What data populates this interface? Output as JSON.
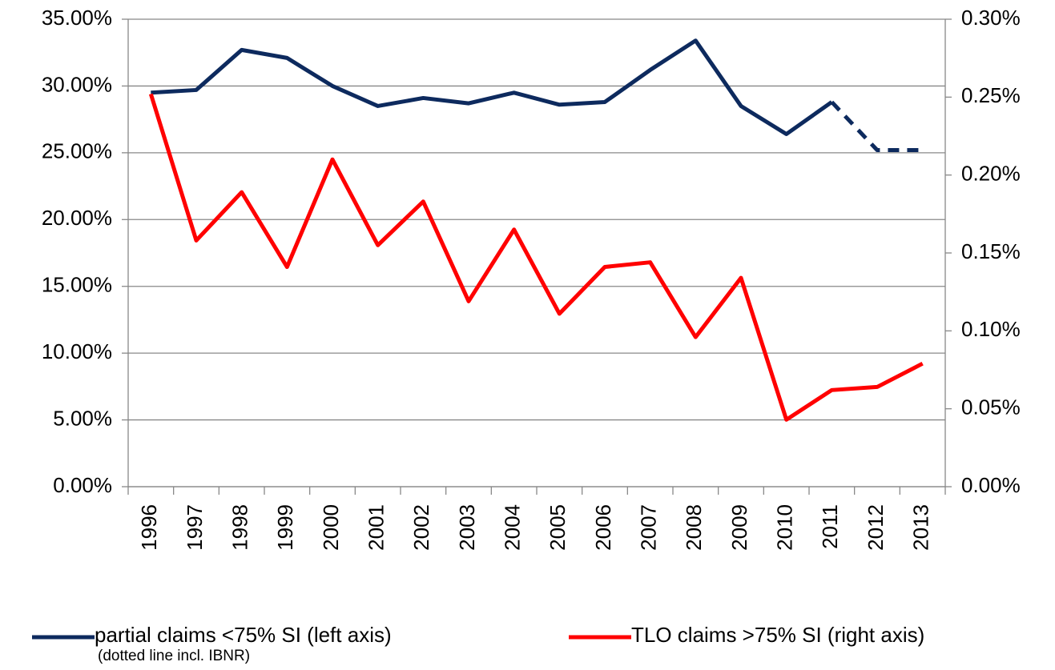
{
  "chart_data": {
    "type": "line",
    "categories": [
      "1996",
      "1997",
      "1998",
      "1999",
      "2000",
      "2001",
      "2002",
      "2003",
      "2004",
      "2005",
      "2006",
      "2007",
      "2008",
      "2009",
      "2010",
      "2011",
      "2012",
      "2013"
    ],
    "series": [
      {
        "name": "partial claims <75% SI (left axis)",
        "note": "(dotted line incl. IBNR)",
        "color": "#0d2a5e",
        "axis": "y",
        "values": [
          29.5,
          29.7,
          32.7,
          32.1,
          30.0,
          28.5,
          29.1,
          28.7,
          29.5,
          28.6,
          28.8,
          31.2,
          33.4,
          28.5,
          26.4,
          28.8,
          null,
          null
        ],
        "ibnr_values": [
          null,
          null,
          null,
          null,
          null,
          null,
          null,
          null,
          null,
          null,
          null,
          null,
          null,
          null,
          null,
          28.8,
          25.2,
          25.2
        ]
      },
      {
        "name": "TLO claims >75% SI (right axis)",
        "color": "#ff0000",
        "axis": "y2",
        "values": [
          0.252,
          0.158,
          0.189,
          0.141,
          0.21,
          0.155,
          0.183,
          0.119,
          0.165,
          0.111,
          0.141,
          0.144,
          0.096,
          0.134,
          0.043,
          0.062,
          0.064,
          0.079
        ]
      }
    ],
    "ylim": [
      0,
      35
    ],
    "yticks": [
      {
        "value": 0,
        "label": "0.00%"
      },
      {
        "value": 5,
        "label": "5.00%"
      },
      {
        "value": 10,
        "label": "10.00%"
      },
      {
        "value": 15,
        "label": "15.00%"
      },
      {
        "value": 20,
        "label": "20.00%"
      },
      {
        "value": 25,
        "label": "25.00%"
      },
      {
        "value": 30,
        "label": "30.00%"
      },
      {
        "value": 35,
        "label": "35.00%"
      }
    ],
    "y2lim": [
      0,
      0.3
    ],
    "y2ticks": [
      {
        "value": 0,
        "label": "0.00%"
      },
      {
        "value": 0.05,
        "label": "0.05%"
      },
      {
        "value": 0.1,
        "label": "0.10%"
      },
      {
        "value": 0.15,
        "label": "0.15%"
      },
      {
        "value": 0.2,
        "label": "0.20%"
      },
      {
        "value": 0.25,
        "label": "0.25%"
      },
      {
        "value": 0.3,
        "label": "0.30%"
      }
    ],
    "grid": true
  }
}
